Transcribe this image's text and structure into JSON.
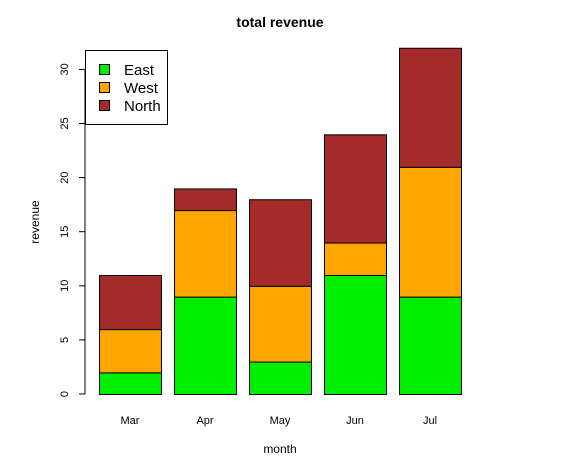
{
  "chart_data": {
    "type": "bar",
    "stacked": true,
    "title": "total revenue",
    "xlabel": "month",
    "ylabel": "revenue",
    "categories": [
      "Mar",
      "Apr",
      "May",
      "Jun",
      "Jul"
    ],
    "series": [
      {
        "name": "East",
        "values": [
          2,
          9,
          3,
          11,
          9
        ],
        "color": "#00ee00"
      },
      {
        "name": "West",
        "values": [
          4,
          8,
          7,
          3,
          12
        ],
        "color": "#ffa500"
      },
      {
        "name": "North",
        "values": [
          5,
          2,
          8,
          10,
          11
        ],
        "color": "#a52a2a"
      }
    ],
    "yticks": [
      0,
      5,
      10,
      15,
      20,
      25,
      30
    ],
    "ylim": [
      0,
      32
    ],
    "grid": false,
    "legend_position": "top-left"
  }
}
